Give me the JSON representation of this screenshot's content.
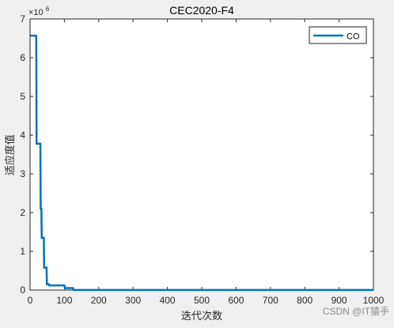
{
  "chart_data": {
    "type": "line",
    "title": "CEC2020-F4",
    "xlabel": "迭代次数",
    "ylabel": "适应度值",
    "xlim": [
      0,
      1000
    ],
    "ylim": [
      0,
      7000000
    ],
    "y_multiplier_label": "×10",
    "y_multiplier_exp": "6",
    "xticks": [
      0,
      100,
      200,
      300,
      400,
      500,
      600,
      700,
      800,
      900,
      1000
    ],
    "yticks": [
      0,
      1,
      2,
      3,
      4,
      5,
      6,
      7
    ],
    "legend_position": "top-right",
    "grid": false,
    "series": [
      {
        "name": "CO",
        "color": "#0072bd",
        "x": [
          1,
          18,
          19,
          30,
          31,
          33,
          34,
          40,
          41,
          48,
          49,
          55,
          56,
          100,
          102,
          125,
          127,
          1000
        ],
        "y": [
          6570000,
          6570000,
          3780000,
          3780000,
          2100000,
          2100000,
          1350000,
          1350000,
          580000,
          580000,
          150000,
          150000,
          120000,
          120000,
          50000,
          50000,
          3000,
          3000
        ]
      }
    ]
  },
  "watermark": "CSDN @IT猿手"
}
